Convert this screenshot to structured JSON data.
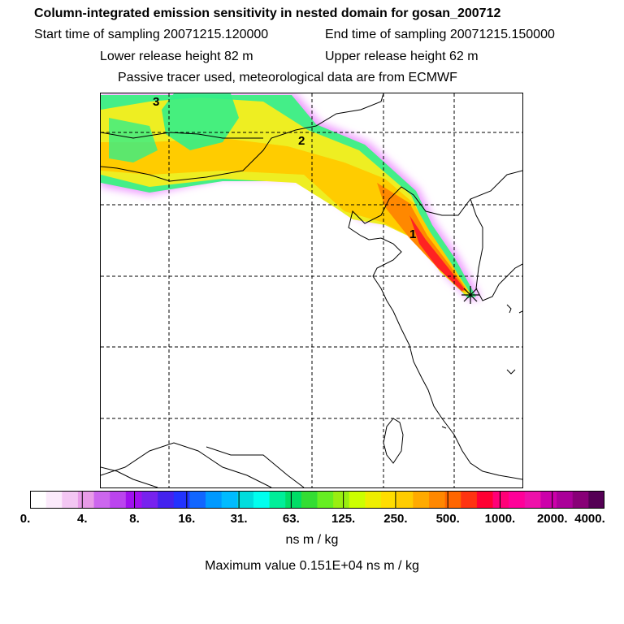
{
  "header": {
    "title": "Column-integrated emission sensitivity in nested domain for gosan_200712",
    "start_label": "Start time of sampling 20071215.120000",
    "end_label": "End time of sampling 20071215.150000",
    "lower_label": "Lower release height   82 m",
    "upper_label": "Upper release height   62 m",
    "note": "Passive tracer used, meteorological data are from ECMWF"
  },
  "map": {
    "day_markers": [
      "3",
      "2",
      "1"
    ],
    "release_marker": "release-point-star"
  },
  "colorbar": {
    "colors": [
      "#ffffff",
      "#fbeafb",
      "#f3c6f3",
      "#e89be8",
      "#cc66ee",
      "#bb44ee",
      "#a010ee",
      "#7722ee",
      "#4422ee",
      "#2233ff",
      "#1166ff",
      "#0099ff",
      "#00bbff",
      "#00dddd",
      "#00ffee",
      "#00ee99",
      "#00dd66",
      "#33dd33",
      "#66ee22",
      "#99ee11",
      "#ccff00",
      "#eeee00",
      "#ffdd00",
      "#ffcc00",
      "#ffaa00",
      "#ff8800",
      "#ff6600",
      "#ff3311",
      "#ff0033",
      "#ff0077",
      "#ff0099",
      "#ee11aa",
      "#cc00aa",
      "#aa0099",
      "#880077",
      "#550055"
    ],
    "tick_labels": [
      "0.",
      "4.",
      "8.",
      "16.",
      "31.",
      "63.",
      "125.",
      "250.",
      "500.",
      "1000.",
      "2000.",
      "4000."
    ],
    "unit": "ns m / kg"
  },
  "footer": {
    "max_value": "Maximum value  0.151E+04 ns m / kg"
  }
}
